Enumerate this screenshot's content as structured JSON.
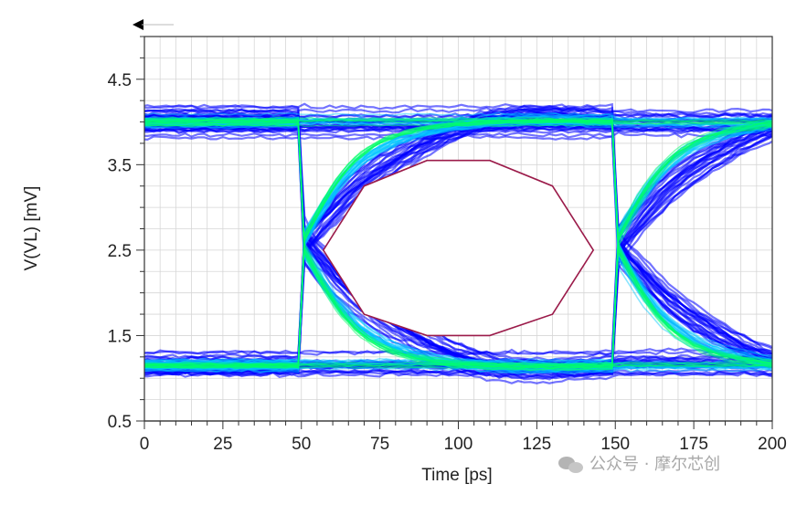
{
  "chart_data": {
    "type": "scatter",
    "subtype": "eye-diagram",
    "title": "",
    "xlabel": "Time [ps]",
    "ylabel": "V(VL) [mV]",
    "xlim": [
      0,
      200
    ],
    "ylim": [
      0.5,
      5.0
    ],
    "x_ticks": [
      "0",
      "25",
      "50",
      "75",
      "100",
      "125",
      "150",
      "175",
      "200"
    ],
    "y_ticks": [
      "0.5",
      "1.5",
      "2.5",
      "3.5",
      "4.5"
    ],
    "grid": true,
    "levels": {
      "high": 4.0,
      "low": 1.15
    },
    "crossings": [
      {
        "x": 50,
        "y": 2.4
      },
      {
        "x": 150,
        "y": 2.4
      }
    ],
    "eye_mask": {
      "color": "#9b1b4a",
      "points": [
        [
          57,
          2.5
        ],
        [
          70,
          3.25
        ],
        [
          90,
          3.55
        ],
        [
          110,
          3.55
        ],
        [
          130,
          3.25
        ],
        [
          143,
          2.5
        ],
        [
          130,
          1.75
        ],
        [
          110,
          1.5
        ],
        [
          90,
          1.5
        ],
        [
          70,
          1.75
        ],
        [
          57,
          2.5
        ]
      ]
    },
    "colors": {
      "density_low": "#0000ff",
      "density_mid": "#00c8ff",
      "density_high": "#00ff66"
    }
  },
  "watermark": {
    "text": "公众号 · 摩尔芯创",
    "icon": "wechat-icon"
  }
}
